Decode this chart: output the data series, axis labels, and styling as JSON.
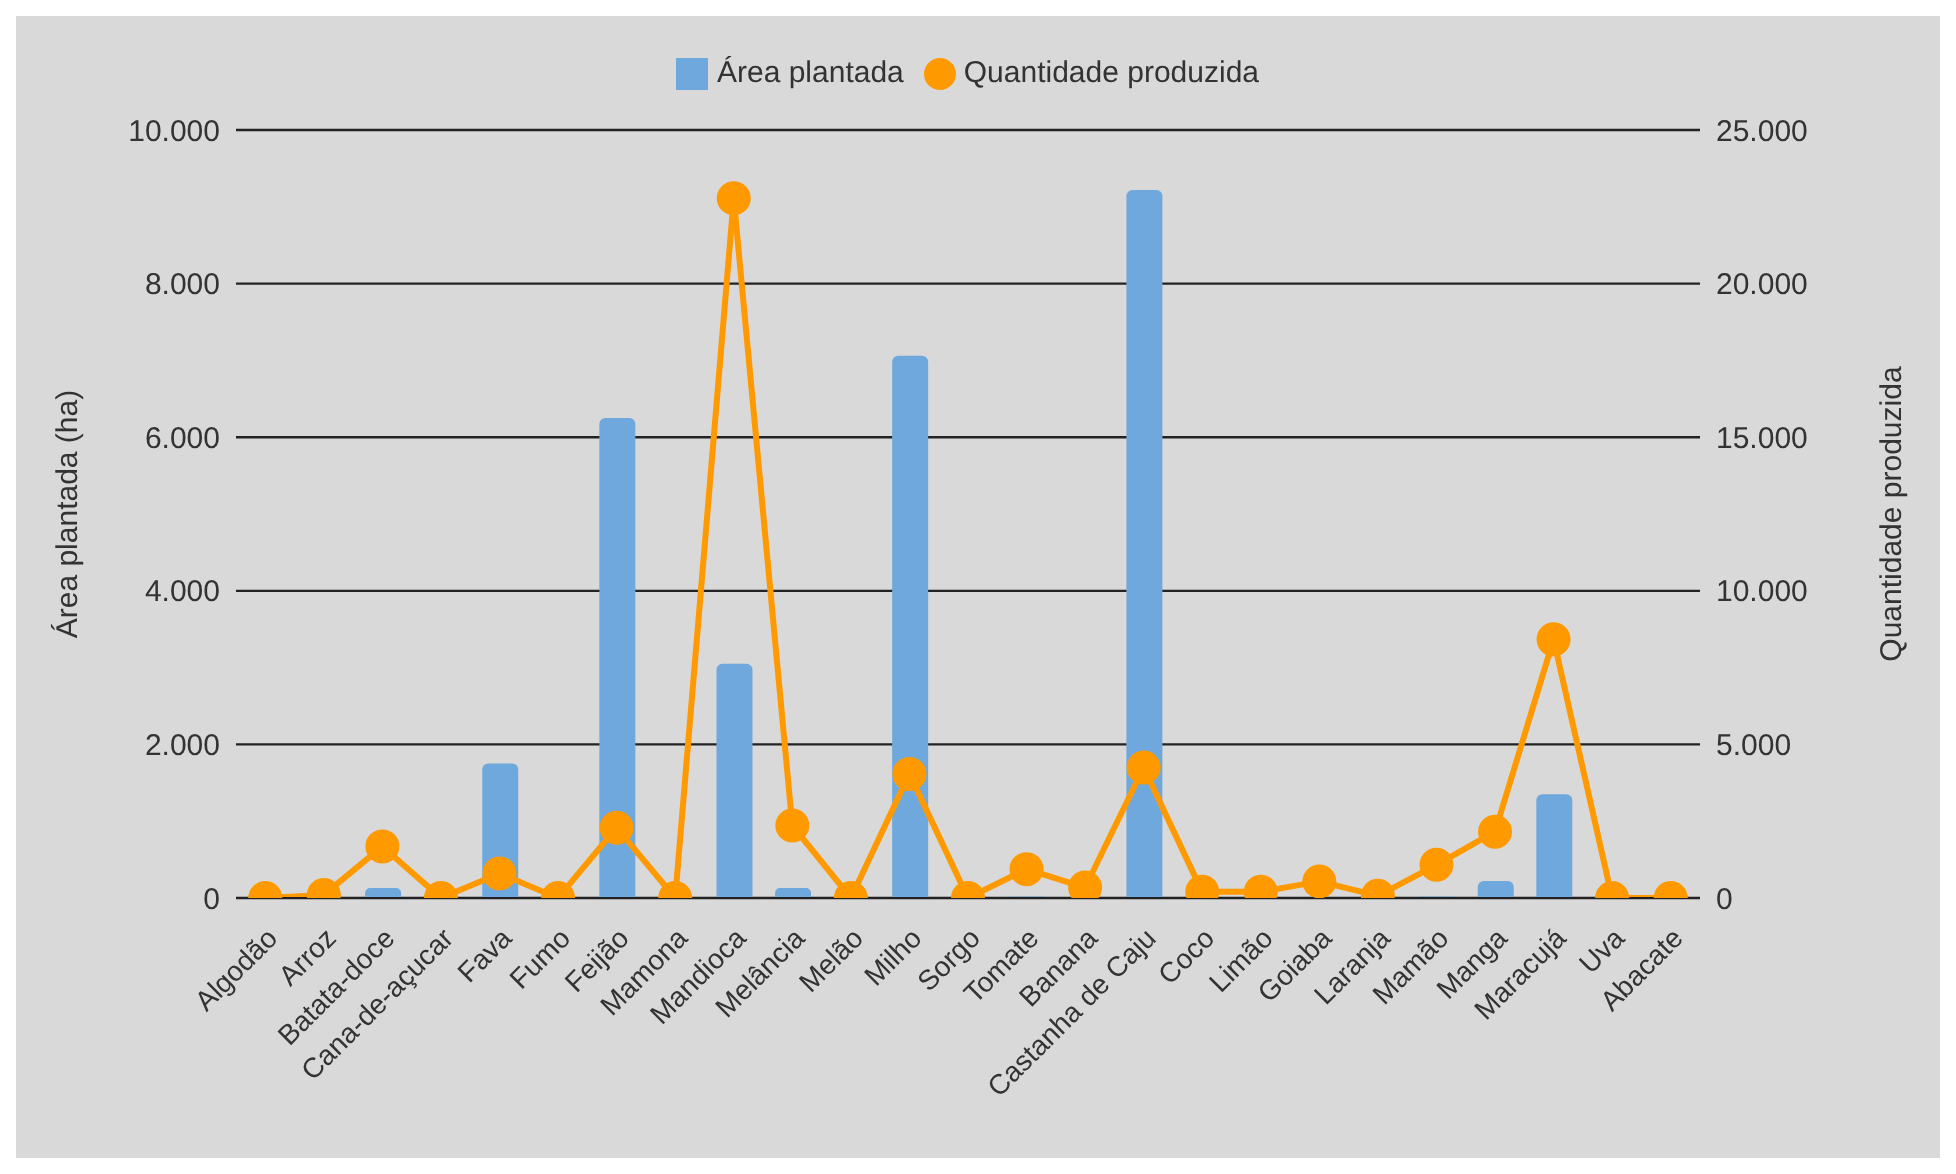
{
  "chart_data": {
    "type": "bar",
    "categories": [
      "Algodão",
      "Arroz",
      "Batata-doce",
      "Cana-de-açucar",
      "Fava",
      "Fumo",
      "Feijão",
      "Mamona",
      "Mandioca",
      "Melância",
      "Melão",
      "Milho",
      "Sorgo",
      "Tomate",
      "Banana",
      "Castanha de Caju",
      "Coco",
      "Limão",
      "Goiaba",
      "Laranja",
      "Mamão",
      "Manga",
      "Maracujá",
      "Uva",
      "Abacate"
    ],
    "series": [
      {
        "name": "Área plantada",
        "color": "#6fa8dc",
        "values": [
          0,
          0,
          130,
          0,
          1750,
          0,
          6250,
          0,
          3050,
          130,
          0,
          7060,
          0,
          20,
          null,
          9220,
          null,
          null,
          null,
          null,
          20,
          220,
          1350,
          0,
          0
        ]
      },
      {
        "name": "Quantidade produzida",
        "type": "line",
        "axis": "y2",
        "color": "#ff9900",
        "values": [
          0,
          100,
          1680,
          0,
          800,
          0,
          2290,
          0,
          22780,
          2360,
          0,
          4040,
          0,
          940,
          340,
          4250,
          200,
          200,
          540,
          70,
          1080,
          2160,
          8420,
          0,
          0
        ]
      }
    ],
    "ylabel": "Área plantada (ha)",
    "y2label": "Quantidade produzida",
    "ylim": [
      0,
      10000
    ],
    "yticks": [
      {
        "value": 0,
        "label": "0"
      },
      {
        "value": 2000,
        "label": "2.000"
      },
      {
        "value": 4000,
        "label": "4.000"
      },
      {
        "value": 6000,
        "label": "6.000"
      },
      {
        "value": 8000,
        "label": "8.000"
      },
      {
        "value": 10000,
        "label": "10.000"
      }
    ],
    "y2lim": [
      0,
      25000
    ],
    "y2ticks": [
      {
        "value": 0,
        "label": "0"
      },
      {
        "value": 5000,
        "label": "5.000"
      },
      {
        "value": 10000,
        "label": "10.000"
      },
      {
        "value": 15000,
        "label": "15.000"
      },
      {
        "value": 20000,
        "label": "20.000"
      },
      {
        "value": 25000,
        "label": "25.000"
      }
    ],
    "grid": "y",
    "legend": "top",
    "marker": "circle"
  }
}
